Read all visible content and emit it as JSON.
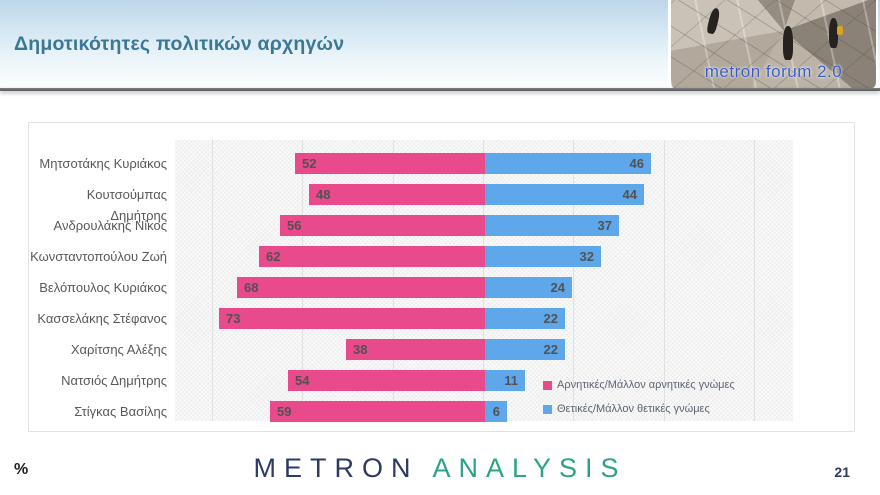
{
  "header": {
    "title": "Δημοτικότητες πολιτικών αρχηγών",
    "logo_text": "metron forum 2.0"
  },
  "chart_data": {
    "type": "bar",
    "variant": "diverging-horizontal",
    "title": "Δημοτικότητες πολιτικών αρχηγών",
    "unit": "%",
    "categories": [
      "Μητσοτάκης Κυριάκος",
      "Κουτσούμπας Δημήτρης",
      "Ανδρουλάκης Νίκος",
      "Κωνσταντοπούλου Ζωή",
      "Βελόπουλος Κυριάκος",
      "Κασσελάκης Στέφανος",
      "Χαρίτσης Αλέξης",
      "Νατσιός Δημήτρης",
      "Στίγκας Βασίλης"
    ],
    "series": [
      {
        "name": "Αρνητικές/Μάλλον αρνητικές γνώμες",
        "color": "#e84a8c",
        "direction": "left",
        "values": [
          52,
          48,
          56,
          62,
          68,
          73,
          38,
          54,
          59
        ]
      },
      {
        "name": "Θετικές/Μάλλον θετικές γνώμες",
        "color": "#5ea7eb",
        "direction": "right",
        "values": [
          46,
          44,
          37,
          32,
          24,
          22,
          22,
          11,
          6
        ]
      }
    ],
    "axis": {
      "max": 85,
      "gridline_step": 25,
      "grid": true
    },
    "legend_position": "inside-bottom-right"
  },
  "footer": {
    "percent_label": "%",
    "brand_metron": "METRON",
    "brand_analysis": "ANALYSIS",
    "page_number": "21"
  },
  "colors": {
    "negative_bar": "#e84a8c",
    "positive_bar": "#5ea7eb",
    "title_text": "#3b7896",
    "brand_navy": "#2c3a66",
    "brand_teal": "#2ba38c"
  }
}
